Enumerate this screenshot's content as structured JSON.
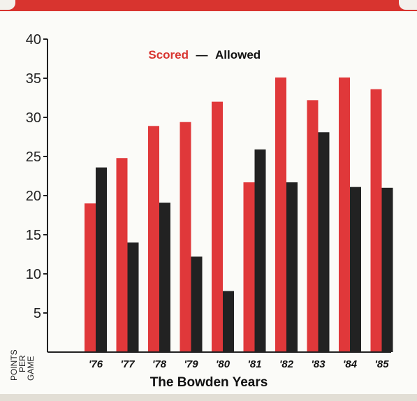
{
  "chart_data": {
    "type": "bar",
    "categories": [
      "'76",
      "'77",
      "'78",
      "'79",
      "'80",
      "'81",
      "'82",
      "'83",
      "'84",
      "'85"
    ],
    "series": [
      {
        "name": "Scored",
        "values": [
          19.0,
          24.8,
          28.9,
          29.4,
          32.0,
          21.7,
          35.1,
          32.2,
          35.1,
          33.6
        ],
        "color": "#e0383a"
      },
      {
        "name": "Allowed",
        "values": [
          23.6,
          14.0,
          19.1,
          12.2,
          7.8,
          25.9,
          21.7,
          28.1,
          21.1,
          21.0
        ],
        "color": "#222222"
      }
    ],
    "yticks": [
      5,
      10,
      15,
      20,
      25,
      30,
      35,
      40
    ],
    "ylim": [
      0,
      40
    ],
    "legend": {
      "scored": "Scored",
      "separator": "—",
      "allowed": "Allowed",
      "placement": "top-center"
    },
    "xlabel": "The Bowden Years",
    "ylabel_lines": [
      "POINTS",
      "PER",
      "GAME"
    ],
    "grid": false
  }
}
